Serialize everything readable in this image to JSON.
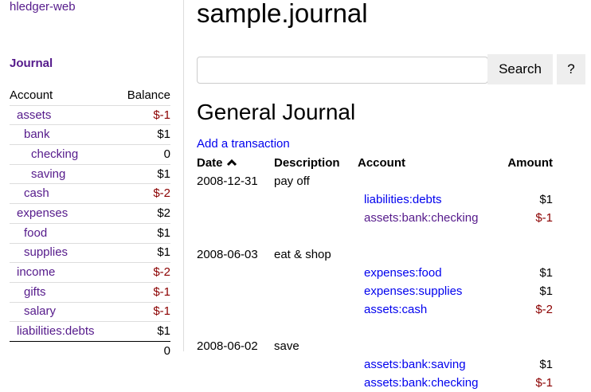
{
  "sidebar": {
    "brand": "hledger-web",
    "journal_link": "Journal",
    "headers": {
      "account": "Account",
      "balance": "Balance"
    },
    "accounts": [
      {
        "name": "assets",
        "balance": "$-1",
        "depth": 1,
        "neg": true
      },
      {
        "name": "bank",
        "balance": "$1",
        "depth": 2
      },
      {
        "name": "checking",
        "balance": "0",
        "depth": 3
      },
      {
        "name": "saving",
        "balance": "$1",
        "depth": 3
      },
      {
        "name": "cash",
        "balance": "$-2",
        "depth": 2,
        "neg": true
      },
      {
        "name": "expenses",
        "balance": "$2",
        "depth": 1
      },
      {
        "name": "food",
        "balance": "$1",
        "depth": 2
      },
      {
        "name": "supplies",
        "balance": "$1",
        "depth": 2
      },
      {
        "name": "income",
        "balance": "$-2",
        "depth": 1,
        "neg": true
      },
      {
        "name": "gifts",
        "balance": "$-1",
        "depth": 2,
        "neg": true
      },
      {
        "name": "salary",
        "balance": "$-1",
        "depth": 2,
        "neg": true
      },
      {
        "name": "liabilities:debts",
        "balance": "$1",
        "depth": 1
      }
    ],
    "total": "0"
  },
  "main": {
    "title": "sample.journal",
    "search": {
      "value": "",
      "button": "Search",
      "help": "?"
    },
    "heading": "General Journal",
    "add_link": "Add a transaction",
    "columns": {
      "date": "Date",
      "sort_icon": "chevron-up-icon",
      "description": "Description",
      "account": "Account",
      "amount": "Amount"
    },
    "transactions": [
      {
        "date": "2008-12-31",
        "description": "pay off",
        "postings": [
          {
            "account": "liabilities:debts",
            "amount": "$1",
            "visited": false
          },
          {
            "account": "assets:bank:checking",
            "amount": "$-1",
            "neg": true,
            "visited": true
          }
        ]
      },
      {
        "date": "2008-06-03",
        "description": "eat & shop",
        "postings": [
          {
            "account": "expenses:food",
            "amount": "$1"
          },
          {
            "account": "expenses:supplies",
            "amount": "$1"
          },
          {
            "account": "assets:cash",
            "amount": "$-2",
            "neg": true
          }
        ]
      },
      {
        "date": "2008-06-02",
        "description": "save",
        "postings": [
          {
            "account": "assets:bank:saving",
            "amount": "$1"
          },
          {
            "account": "assets:bank:checking",
            "amount": "$-1",
            "neg": true
          }
        ]
      }
    ]
  },
  "colors": {
    "visited_link": "#551a8b",
    "link": "#0000ee",
    "negative": "#8b0000"
  }
}
